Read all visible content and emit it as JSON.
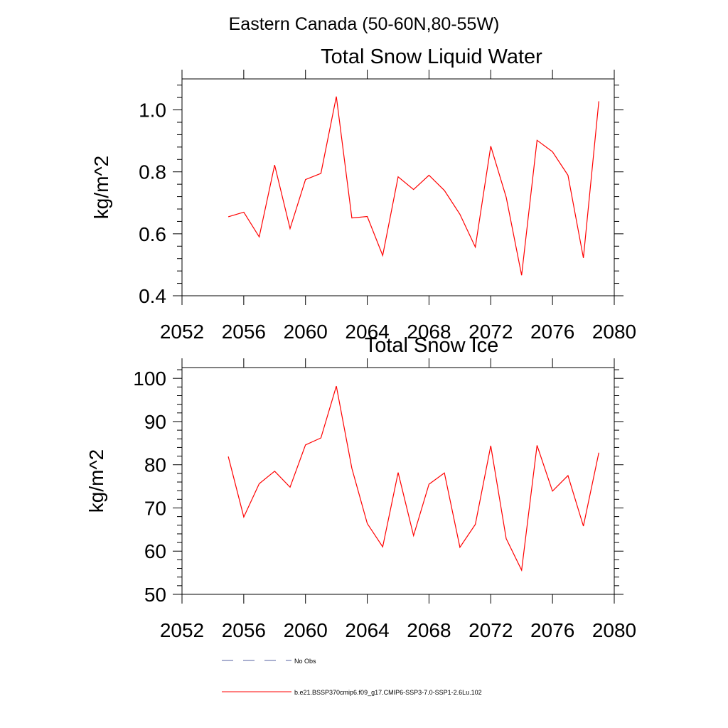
{
  "figure": {
    "suptitle": "Eastern Canada (50-60N,80-55W)",
    "legend": [
      {
        "label": "No Obs",
        "color": "#5560a0",
        "dashed": true
      },
      {
        "label": "b.e21.BSSP370cmip6.f09_g17.CMIP6-SSP3-7.0-SSP1-2.6Lu.102",
        "color": "#ff0000",
        "dashed": false
      }
    ]
  },
  "chart_data": [
    {
      "type": "line",
      "title": "Total Snow Liquid Water",
      "xlabel": "",
      "ylabel": "kg/m^2",
      "xlim": [
        2052,
        2080
      ],
      "ylim": [
        0.4,
        1.1
      ],
      "xticks": [
        2052,
        2056,
        2060,
        2064,
        2068,
        2072,
        2076,
        2080
      ],
      "yticks": [
        0.4,
        0.6,
        0.8,
        1.0
      ],
      "ytick_labels": [
        "0.4",
        "0.6",
        "0.8",
        "1.0"
      ],
      "grid": false,
      "series": [
        {
          "name": "b.e21.BSSP370cmip6.f09_g17.CMIP6-SSP3-7.0-SSP1-2.6Lu.102",
          "color": "#ff0000",
          "x": [
            2055,
            2056,
            2057,
            2058,
            2059,
            2060,
            2061,
            2062,
            2063,
            2064,
            2065,
            2066,
            2067,
            2068,
            2069,
            2070,
            2071,
            2072,
            2073,
            2074,
            2075,
            2076,
            2077,
            2078,
            2079
          ],
          "y": [
            0.655,
            0.67,
            0.59,
            0.822,
            0.617,
            0.775,
            0.795,
            1.043,
            0.651,
            0.656,
            0.53,
            0.784,
            0.743,
            0.789,
            0.74,
            0.663,
            0.557,
            0.883,
            0.718,
            0.466,
            0.902,
            0.865,
            0.789,
            0.522,
            1.028
          ]
        }
      ]
    },
    {
      "type": "line",
      "title": "Total Snow Ice",
      "xlabel": "",
      "ylabel": "kg/m^2",
      "xlim": [
        2052,
        2080
      ],
      "ylim": [
        50,
        102.5
      ],
      "xticks": [
        2052,
        2056,
        2060,
        2064,
        2068,
        2072,
        2076,
        2080
      ],
      "yticks": [
        50,
        60,
        70,
        80,
        90,
        100
      ],
      "ytick_labels": [
        "50",
        "60",
        "70",
        "80",
        "90",
        "100"
      ],
      "grid": false,
      "series": [
        {
          "name": "b.e21.BSSP370cmip6.f09_g17.CMIP6-SSP3-7.0-SSP1-2.6Lu.102",
          "color": "#ff0000",
          "x": [
            2055,
            2056,
            2057,
            2058,
            2059,
            2060,
            2061,
            2062,
            2063,
            2064,
            2065,
            2066,
            2067,
            2068,
            2069,
            2070,
            2071,
            2072,
            2073,
            2074,
            2075,
            2076,
            2077,
            2078,
            2079
          ],
          "y": [
            81.9,
            67.9,
            75.6,
            78.5,
            74.8,
            84.6,
            86.2,
            98.2,
            79.2,
            66.4,
            61.0,
            78.2,
            63.6,
            75.5,
            78.1,
            60.9,
            66.2,
            84.4,
            62.9,
            55.6,
            84.5,
            73.9,
            77.5,
            65.8,
            82.8
          ]
        }
      ]
    }
  ]
}
